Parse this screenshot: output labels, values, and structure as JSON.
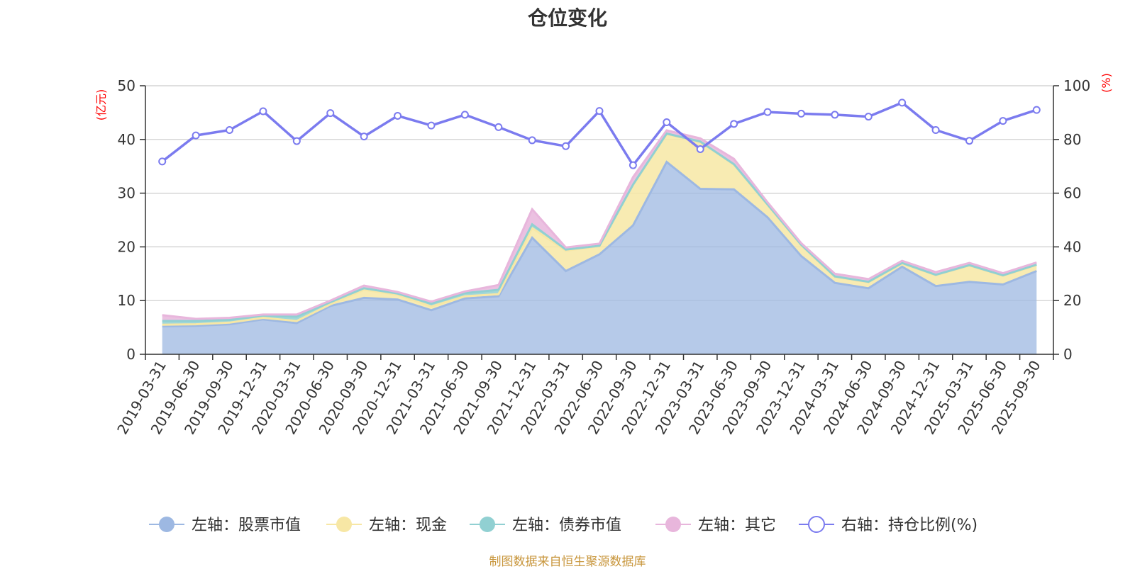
{
  "colors": {
    "stock": "#9db8e2",
    "cash": "#f7e7a5",
    "bond": "#91d0d2",
    "other": "#e8b6dc",
    "ratio": "#7b7bef",
    "grid": "#cccccc",
    "axis": "#333333",
    "unit": "#ff0000",
    "source": "#c8963c"
  },
  "chart_data": {
    "type": "area",
    "title": "仓位变化",
    "left_axis_unit": "(亿元)",
    "right_axis_unit": "(%)",
    "left_ylim": [
      0,
      50
    ],
    "right_ylim": [
      0,
      100
    ],
    "left_ticks": [
      "0",
      "10",
      "20",
      "30",
      "40",
      "50"
    ],
    "right_ticks": [
      "0",
      "20",
      "40",
      "60",
      "80",
      "100"
    ],
    "grid": true,
    "legend_position": "bottom",
    "x": [
      "2019-03-31",
      "2019-06-30",
      "2019-09-30",
      "2019-12-31",
      "2020-03-31",
      "2020-06-30",
      "2020-09-30",
      "2020-12-31",
      "2021-03-31",
      "2021-06-30",
      "2021-09-30",
      "2021-12-31",
      "2022-03-31",
      "2022-06-30",
      "2022-09-30",
      "2022-12-31",
      "2023-03-31",
      "2023-06-30",
      "2023-09-30",
      "2023-12-31",
      "2024-03-31",
      "2024-06-30",
      "2024-09-30",
      "2024-12-31",
      "2025-03-31",
      "2025-06-30",
      "2025-09-30"
    ],
    "series": [
      {
        "name": "左轴：股票市值",
        "axis": "left",
        "stack": true,
        "values": [
          5.2,
          5.3,
          5.6,
          6.5,
          5.8,
          9.0,
          10.5,
          10.2,
          8.2,
          10.4,
          10.8,
          21.7,
          15.5,
          18.6,
          24.0,
          35.8,
          30.8,
          30.7,
          25.5,
          18.3,
          13.3,
          12.3,
          16.3,
          12.7,
          13.5,
          13.0,
          15.5
        ]
      },
      {
        "name": "左轴：现金",
        "axis": "left",
        "stack": true,
        "values": [
          0.3,
          0.3,
          0.3,
          0.3,
          0.4,
          0.3,
          1.5,
          0.9,
          0.7,
          0.4,
          0.4,
          1.8,
          3.8,
          1.5,
          7.5,
          5.2,
          8.7,
          4.6,
          2.3,
          2.0,
          1.1,
          1.1,
          0.6,
          2.0,
          3.0,
          1.6,
          1.1
        ]
      },
      {
        "name": "左轴：债券市值",
        "axis": "left",
        "stack": true,
        "values": [
          0.7,
          0.6,
          0.5,
          0.4,
          0.8,
          0.4,
          0.3,
          0.2,
          0.5,
          0.6,
          0.8,
          0.7,
          0.2,
          0.1,
          0.1,
          0.1,
          0.1,
          0.1,
          0.1,
          0.1,
          0.1,
          0.1,
          0.1,
          0.1,
          0.1,
          0.1,
          0.1
        ]
      },
      {
        "name": "左轴：其它",
        "axis": "left",
        "stack": true,
        "values": [
          1.1,
          0.4,
          0.4,
          0.2,
          0.4,
          0.3,
          0.5,
          0.3,
          0.4,
          0.3,
          0.9,
          2.8,
          0.4,
          0.4,
          1.4,
          0.6,
          0.6,
          1.0,
          0.4,
          0.3,
          0.5,
          0.5,
          0.4,
          0.5,
          0.4,
          0.4,
          0.4
        ]
      },
      {
        "name": "右轴：持仓比例(%)",
        "axis": "right",
        "type": "line",
        "values": [
          71.8,
          81.5,
          83.5,
          90.5,
          79.4,
          89.8,
          81.1,
          88.8,
          85.2,
          89.2,
          84.6,
          79.7,
          77.5,
          90.6,
          70.4,
          86.4,
          76.4,
          85.8,
          90.2,
          89.6,
          89.2,
          88.5,
          93.7,
          83.5,
          79.5,
          86.9,
          91.0
        ]
      }
    ]
  },
  "legend": [
    {
      "label": "左轴：股票市值",
      "icon": "filled-circle"
    },
    {
      "label": "左轴：现金",
      "icon": "filled-circle"
    },
    {
      "label": "左轴：债券市值",
      "icon": "filled-circle"
    },
    {
      "label": "左轴：其它",
      "icon": "filled-circle"
    },
    {
      "label": "右轴：持仓比例(%)",
      "icon": "hollow-circle"
    }
  ],
  "source_note": "制图数据来自恒生聚源数据库"
}
